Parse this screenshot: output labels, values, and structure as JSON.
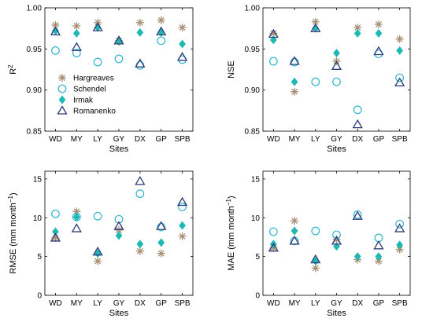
{
  "series_styles": [
    {
      "name": "Hargreaves",
      "marker": "asterisk",
      "color": "#a88f74"
    },
    {
      "name": "Schendel",
      "marker": "circle-open",
      "color": "#2fb6cf"
    },
    {
      "name": "Irmak",
      "marker": "diamond-filled",
      "color": "#1fb8b3"
    },
    {
      "name": "Romanenko",
      "marker": "triangle-open",
      "color": "#2d3a78"
    }
  ],
  "chart_data": [
    {
      "type": "scatter",
      "categories": [
        "WD",
        "MY",
        "LY",
        "GY",
        "DX",
        "GP",
        "SPB"
      ],
      "xlabel": "Sites",
      "ylabel": "R",
      "ylabel_sup": "2",
      "ylim": [
        0.85,
        1.0
      ],
      "yticks": [
        "0.85",
        "0.90",
        "0.95",
        "1.00"
      ],
      "legend": "bottom-left",
      "series": [
        {
          "name": "Hargreaves",
          "values": [
            0.979,
            0.978,
            0.982,
            0.96,
            0.982,
            0.985,
            0.976
          ]
        },
        {
          "name": "Schendel",
          "values": [
            0.948,
            0.945,
            0.934,
            0.938,
            0.93,
            0.96,
            0.937
          ]
        },
        {
          "name": "Irmak",
          "values": [
            0.972,
            0.969,
            0.976,
            0.959,
            0.97,
            0.97,
            0.956
          ]
        },
        {
          "name": "Romanenko",
          "values": [
            0.971,
            0.952,
            0.976,
            0.96,
            0.932,
            0.971,
            0.94
          ]
        }
      ]
    },
    {
      "type": "scatter",
      "categories": [
        "WD",
        "MY",
        "LY",
        "GY",
        "DX",
        "GP",
        "SPB"
      ],
      "xlabel": "Sites",
      "ylabel": "NSE",
      "ylabel_sup": "",
      "ylim": [
        0.85,
        1.0
      ],
      "yticks": [
        "0.85",
        "0.90",
        "0.95",
        "1.00"
      ],
      "series": [
        {
          "name": "Hargreaves",
          "values": [
            0.969,
            0.898,
            0.983,
            0.935,
            0.976,
            0.98,
            0.962
          ]
        },
        {
          "name": "Schendel",
          "values": [
            0.935,
            0.934,
            0.91,
            0.91,
            0.876,
            0.944,
            0.915
          ]
        },
        {
          "name": "Irmak",
          "values": [
            0.961,
            0.91,
            0.975,
            0.945,
            0.969,
            0.969,
            0.948
          ]
        },
        {
          "name": "Romanenko",
          "values": [
            0.968,
            0.935,
            0.975,
            0.929,
            0.858,
            0.947,
            0.909
          ]
        }
      ]
    },
    {
      "type": "scatter",
      "categories": [
        "WD",
        "MY",
        "LY",
        "GY",
        "DX",
        "GP",
        "SPB"
      ],
      "xlabel": "Sites",
      "ylabel": "RMSE (mm month",
      "ylabel_sup": "−1",
      "ylabel_tail": ")",
      "ylim": [
        0,
        16
      ],
      "yticks": [
        "0",
        "5",
        "10",
        "15"
      ],
      "series": [
        {
          "name": "Hargreaves",
          "values": [
            7.4,
            10.8,
            4.4,
            8.4,
            5.7,
            5.4,
            7.6
          ]
        },
        {
          "name": "Schendel",
          "values": [
            10.5,
            10.1,
            10.2,
            9.8,
            13.1,
            8.8,
            11.4
          ]
        },
        {
          "name": "Irmak",
          "values": [
            8.2,
            10.1,
            5.4,
            7.7,
            6.6,
            6.8,
            9.0
          ]
        },
        {
          "name": "Romanenko",
          "values": [
            7.4,
            8.6,
            5.6,
            8.9,
            14.7,
            8.9,
            12.0
          ]
        }
      ]
    },
    {
      "type": "scatter",
      "categories": [
        "WD",
        "MY",
        "LY",
        "GY",
        "DX",
        "GP",
        "SPB"
      ],
      "xlabel": "Sites",
      "ylabel": "MAE (mm month",
      "ylabel_sup": "−1",
      "ylabel_tail": ")",
      "ylim": [
        0,
        16
      ],
      "yticks": [
        "0",
        "5",
        "10",
        "15"
      ],
      "series": [
        {
          "name": "Hargreaves",
          "values": [
            6.1,
            9.6,
            3.5,
            7.2,
            4.6,
            4.4,
            5.9
          ]
        },
        {
          "name": "Schendel",
          "values": [
            8.2,
            7.0,
            8.3,
            7.8,
            10.4,
            7.4,
            9.2
          ]
        },
        {
          "name": "Irmak",
          "values": [
            6.6,
            8.3,
            4.4,
            6.3,
            5.0,
            5.0,
            6.5
          ]
        },
        {
          "name": "Romanenko",
          "values": [
            6.1,
            7.0,
            4.6,
            7.0,
            10.2,
            6.4,
            8.6
          ]
        }
      ]
    }
  ]
}
